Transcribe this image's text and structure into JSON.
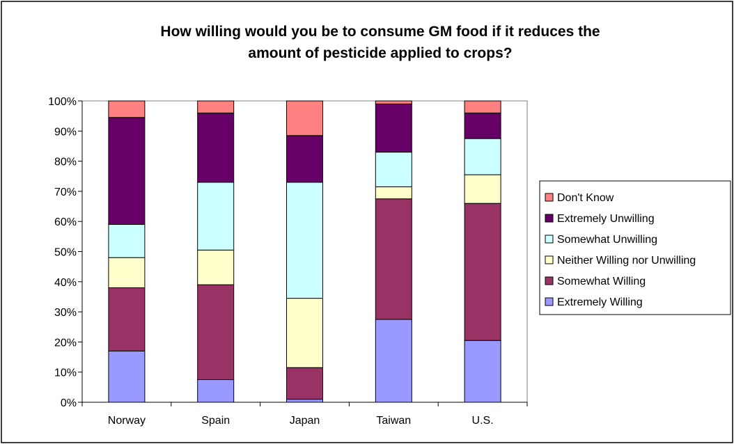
{
  "chart_data": {
    "type": "bar",
    "stacked": true,
    "percent_stacked": true,
    "title_lines": [
      "How willing would you be to consume GM food if it reduces the",
      "amount of pesticide applied to crops?"
    ],
    "xlabel": "",
    "ylabel": "",
    "ylim": [
      0,
      100
    ],
    "y_ticks": [
      "0%",
      "10%",
      "20%",
      "30%",
      "40%",
      "50%",
      "60%",
      "70%",
      "80%",
      "90%",
      "100%"
    ],
    "grid": false,
    "legend_position": "right",
    "categories": [
      "Norway",
      "Spain",
      "Japan",
      "Taiwan",
      "U.S."
    ],
    "series": [
      {
        "name": "Extremely Willing",
        "color": "#9999ff",
        "values": [
          17,
          7.5,
          1,
          27.5,
          20.5
        ]
      },
      {
        "name": "Somewhat Willing",
        "color": "#993366",
        "values": [
          21,
          31.5,
          10.5,
          40,
          45.5
        ]
      },
      {
        "name": "Neither Willing nor Unwilling",
        "color": "#ffffcc",
        "values": [
          10,
          11.5,
          23,
          4,
          9.5
        ]
      },
      {
        "name": "Somewhat Unwilling",
        "color": "#ccffff",
        "values": [
          11,
          22.5,
          38.5,
          11.5,
          12
        ]
      },
      {
        "name": "Extremely Unwilling",
        "color": "#660066",
        "values": [
          35.5,
          23,
          15.5,
          16,
          8.5
        ]
      },
      {
        "name": "Don't Know",
        "color": "#ff8080",
        "values": [
          5.5,
          4,
          11.5,
          1,
          4
        ]
      }
    ]
  }
}
